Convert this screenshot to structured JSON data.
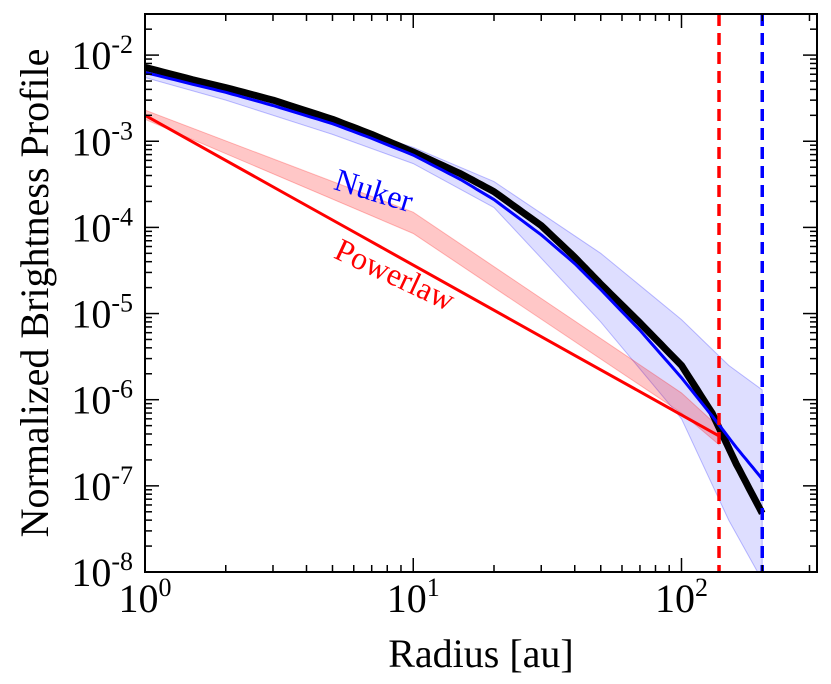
{
  "chart_data": {
    "type": "line",
    "title": "",
    "xlabel": "Radius [au]",
    "ylabel": "Normalized Brightness Profile",
    "xscale": "log",
    "yscale": "log",
    "xlim": [
      1,
      320
    ],
    "ylim": [
      1e-08,
      0.03
    ],
    "x_ticks": [
      {
        "value": 1,
        "base": "10",
        "exp": "0"
      },
      {
        "value": 10,
        "base": "10",
        "exp": "1"
      },
      {
        "value": 100,
        "base": "10",
        "exp": "2"
      }
    ],
    "y_ticks": [
      {
        "value": 1e-08,
        "base": "10",
        "exp": "-8"
      },
      {
        "value": 1e-07,
        "base": "10",
        "exp": "-7"
      },
      {
        "value": 1e-06,
        "base": "10",
        "exp": "-6"
      },
      {
        "value": 1e-05,
        "base": "10",
        "exp": "-5"
      },
      {
        "value": 0.0001,
        "base": "10",
        "exp": "-4"
      },
      {
        "value": 0.001,
        "base": "10",
        "exp": "-3"
      },
      {
        "value": 0.01,
        "base": "10",
        "exp": "-2"
      }
    ],
    "bands": [
      {
        "name": "Nuker range",
        "color": "#0000ff",
        "opacity": 0.13,
        "x": [
          1,
          2,
          5,
          10,
          20,
          50,
          100,
          150,
          200
        ],
        "upper": [
          0.0072,
          0.0039,
          0.0017,
          0.00085,
          0.00034,
          5e-05,
          8.5e-06,
          2.5e-06,
          1.3e-06
        ],
        "lower": [
          0.0055,
          0.003,
          0.0012,
          0.00055,
          0.00017,
          8e-06,
          6e-07,
          4e-08,
          8e-09
        ]
      },
      {
        "name": "Powerlaw range",
        "color": "#ff0000",
        "opacity": 0.22,
        "x": [
          1,
          10,
          100,
          138
        ],
        "upper": [
          0.0023,
          0.00015,
          1.2e-06,
          4.8e-07
        ],
        "lower": [
          0.0018,
          8.5e-05,
          7e-07,
          3e-07
        ]
      }
    ],
    "series": [
      {
        "name": "Black profile",
        "color": "#000000",
        "width": 7,
        "x": [
          1,
          1.5,
          2,
          3,
          5,
          7,
          10,
          15,
          20,
          30,
          40,
          50,
          70,
          100,
          130,
          160,
          200
        ],
        "y": [
          0.0072,
          0.0052,
          0.0042,
          0.003,
          0.0018,
          0.0012,
          0.00075,
          0.00042,
          0.00026,
          0.000105,
          4.5e-05,
          2.2e-05,
          7.8e-06,
          2.5e-06,
          7e-07,
          1.8e-07,
          4.8e-08
        ]
      },
      {
        "name": "Nuker",
        "color": "#0000ff",
        "width": 3,
        "x": [
          1,
          1.5,
          2,
          3,
          5,
          7,
          10,
          15,
          20,
          30,
          40,
          50,
          70,
          100,
          130,
          160,
          200
        ],
        "y": [
          0.0063,
          0.0046,
          0.0037,
          0.0026,
          0.0016,
          0.00108,
          0.00069,
          0.00036,
          0.00021,
          8.2e-05,
          3.8e-05,
          1.9e-05,
          6.4e-06,
          1.8e-06,
          6.5e-07,
          2.8e-07,
          1.2e-07
        ]
      },
      {
        "name": "Powerlaw",
        "color": "#ff0000",
        "width": 3,
        "x": [
          1,
          138
        ],
        "y": [
          0.002,
          3.8e-07
        ]
      }
    ],
    "vlines": [
      {
        "x": 138,
        "color": "#ff0000",
        "style": "dashed"
      },
      {
        "x": 200,
        "color": "#0000ff",
        "style": "dashed"
      }
    ],
    "annotations": [
      {
        "text": "Nuker",
        "color": "#0000ff",
        "x": 5,
        "y": 0.00028,
        "rotation": 17
      },
      {
        "text": "Powerlaw",
        "color": "#ff0000",
        "x": 5,
        "y": 4.5e-05,
        "rotation": 25
      }
    ]
  }
}
